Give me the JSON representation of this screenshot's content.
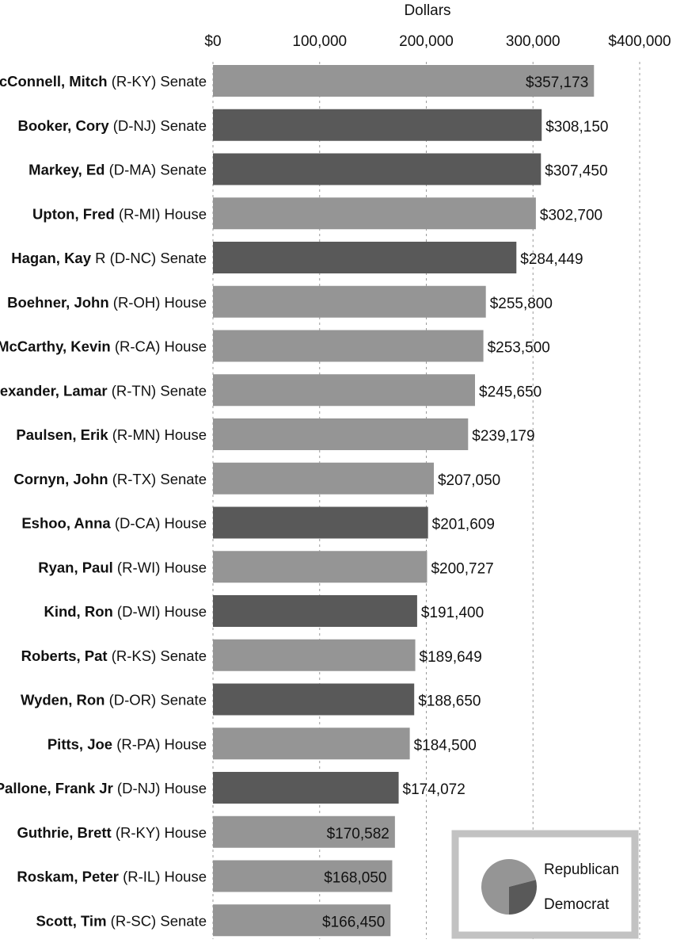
{
  "chart_data": {
    "type": "bar",
    "orientation": "horizontal",
    "title": "",
    "xlabel": "Dollars",
    "ylabel": "",
    "xlim": [
      0,
      400000
    ],
    "grid": true,
    "tick_values": [
      0,
      100000,
      200000,
      300000,
      400000
    ],
    "tick_labels": [
      "$0",
      "100,000",
      "200,000",
      "300,000",
      "$400,000"
    ],
    "categories": [
      {
        "name": "McConnell, Mitch",
        "detail": " (R-KY) Senate",
        "party": "Republican",
        "value": 357173,
        "label": "$357,173"
      },
      {
        "name": "Booker, Cory",
        "detail": " (D-NJ) Senate",
        "party": "Democrat",
        "value": 308150,
        "label": "$308,150"
      },
      {
        "name": "Markey, Ed",
        "detail": " (D-MA) Senate",
        "party": "Democrat",
        "value": 307450,
        "label": "$307,450"
      },
      {
        "name": "Upton, Fred",
        "detail": " (R-MI) House",
        "party": "Republican",
        "value": 302700,
        "label": "$302,700"
      },
      {
        "name": "Hagan, Kay",
        "detail": " R (D-NC) Senate",
        "party": "Democrat",
        "value": 284449,
        "label": "$284,449"
      },
      {
        "name": "Boehner, John",
        "detail": " (R-OH) House",
        "party": "Republican",
        "value": 255800,
        "label": "$255,800"
      },
      {
        "name": "McCarthy, Kevin",
        "detail": " (R-CA) House",
        "party": "Republican",
        "value": 253500,
        "label": "$253,500"
      },
      {
        "name": "Alexander, Lamar",
        "detail": " (R-TN) Senate",
        "party": "Republican",
        "value": 245650,
        "label": "$245,650"
      },
      {
        "name": "Paulsen, Erik",
        "detail": " (R-MN) House",
        "party": "Republican",
        "value": 239179,
        "label": "$239,179"
      },
      {
        "name": "Cornyn, John",
        "detail": " (R-TX) Senate",
        "party": "Republican",
        "value": 207050,
        "label": "$207,050"
      },
      {
        "name": "Eshoo, Anna",
        "detail": " (D-CA) House",
        "party": "Democrat",
        "value": 201609,
        "label": "$201,609"
      },
      {
        "name": "Ryan, Paul",
        "detail": " (R-WI) House",
        "party": "Republican",
        "value": 200727,
        "label": "$200,727"
      },
      {
        "name": "Kind, Ron",
        "detail": " (D-WI) House",
        "party": "Democrat",
        "value": 191400,
        "label": "$191,400"
      },
      {
        "name": "Roberts, Pat",
        "detail": " (R-KS) Senate",
        "party": "Republican",
        "value": 189649,
        "label": "$189,649"
      },
      {
        "name": "Wyden, Ron",
        "detail": " (D-OR) Senate",
        "party": "Democrat",
        "value": 188650,
        "label": "$188,650"
      },
      {
        "name": "Pitts, Joe",
        "detail": " (R-PA) House",
        "party": "Republican",
        "value": 184500,
        "label": "$184,500"
      },
      {
        "name": "Pallone, Frank Jr",
        "detail": " (D-NJ) House",
        "party": "Democrat",
        "value": 174072,
        "label": "$174,072"
      },
      {
        "name": "Guthrie, Brett",
        "detail": " (R-KY) House",
        "party": "Republican",
        "value": 170582,
        "label": "$170,582"
      },
      {
        "name": "Roskam, Peter",
        "detail": " (R-IL) House",
        "party": "Republican",
        "value": 168050,
        "label": "$168,050"
      },
      {
        "name": "Scott, Tim",
        "detail": " (R-SC) Senate",
        "party": "Republican",
        "value": 166450,
        "label": "$166,450"
      }
    ],
    "colors": {
      "Republican": "#959595",
      "Democrat": "#595959"
    },
    "legend": {
      "placement": "bottom-right",
      "entries": [
        {
          "label": "Republican",
          "share": 0.71
        },
        {
          "label": "Democrat",
          "share": 0.29
        }
      ],
      "frame_color": "#c2c2c2"
    }
  }
}
